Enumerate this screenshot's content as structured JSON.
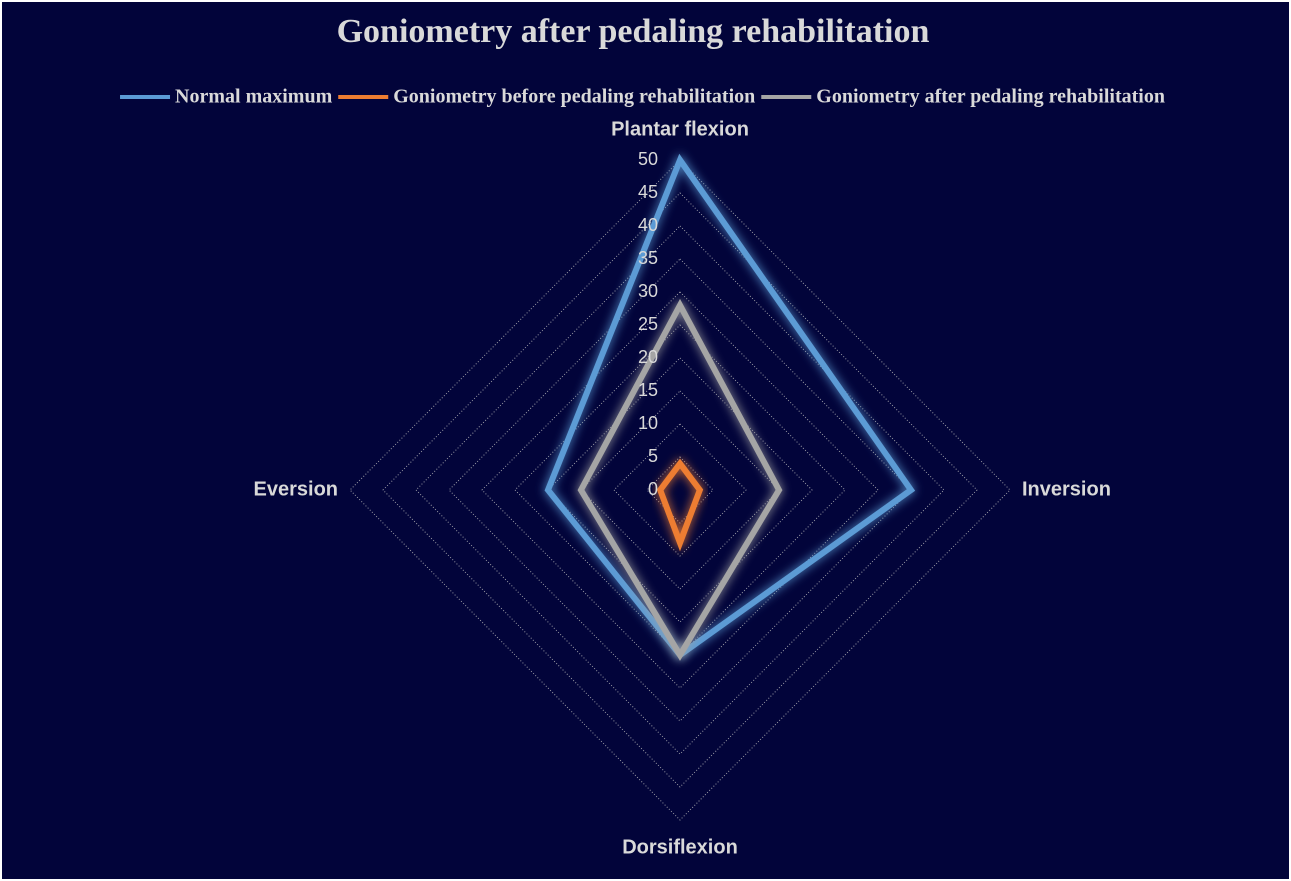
{
  "chart_data": {
    "type": "radar",
    "title": "Goniometry after pedaling rehabilitation",
    "categories": [
      "Plantar flexion",
      "Inversion",
      "Dorsiflexion",
      "Eversion"
    ],
    "series": [
      {
        "name": "Normal maximum",
        "color": "#5b9bd5",
        "values": [
          50,
          35,
          25,
          20
        ]
      },
      {
        "name": "Goniometry before pedaling rehabilitation",
        "color": "#ed7d31",
        "values": [
          4,
          3,
          8,
          3
        ]
      },
      {
        "name": "Goniometry after pedaling rehabilitation",
        "color": "#a5a5a5",
        "values": [
          28,
          15,
          25,
          15
        ]
      }
    ],
    "rlim": [
      0,
      50
    ],
    "rticks": [
      0,
      5,
      10,
      15,
      20,
      25,
      30,
      35,
      40,
      45,
      50
    ],
    "grid": true,
    "legend": "top"
  }
}
